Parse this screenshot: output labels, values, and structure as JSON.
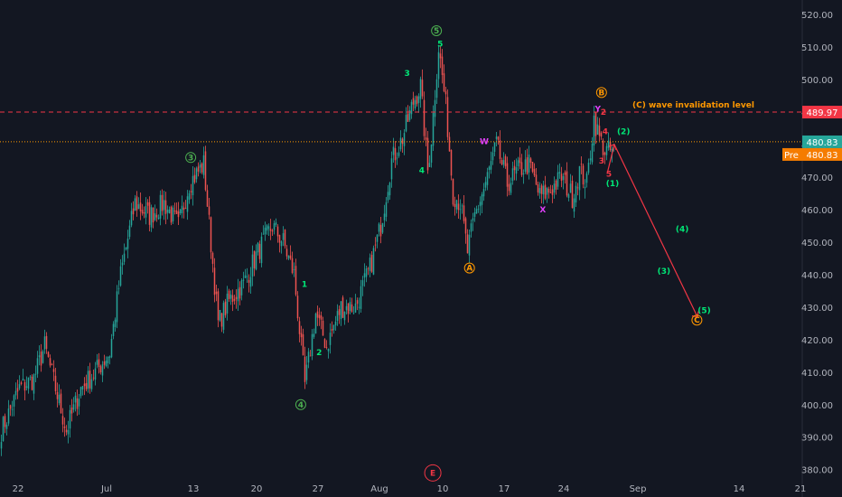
{
  "chart_data": {
    "type": "candlestick",
    "x_ticks": [
      "22",
      "Jul",
      "13",
      "20",
      "27",
      "Aug",
      "10",
      "17",
      "24",
      "Sep",
      "14",
      "21"
    ],
    "y_ticks": [
      "520.00",
      "510.00",
      "500.00",
      "490.00",
      "480.00",
      "470.00",
      "460.00",
      "450.00",
      "440.00",
      "430.00",
      "420.00",
      "410.00",
      "400.00",
      "390.00",
      "380.00"
    ],
    "ylim": [
      376,
      524
    ],
    "grid": false,
    "price_path": [
      {
        "i": 0,
        "v": 392
      },
      {
        "i": 10,
        "v": 405
      },
      {
        "i": 18,
        "v": 408
      },
      {
        "i": 24,
        "v": 418
      },
      {
        "i": 30,
        "v": 405
      },
      {
        "i": 36,
        "v": 392
      },
      {
        "i": 44,
        "v": 405
      },
      {
        "i": 52,
        "v": 410
      },
      {
        "i": 60,
        "v": 416
      },
      {
        "i": 66,
        "v": 440
      },
      {
        "i": 74,
        "v": 462
      },
      {
        "i": 82,
        "v": 458
      },
      {
        "i": 90,
        "v": 462
      },
      {
        "i": 98,
        "v": 455
      },
      {
        "i": 104,
        "v": 468
      },
      {
        "i": 112,
        "v": 474
      },
      {
        "i": 120,
        "v": 425
      },
      {
        "i": 126,
        "v": 432
      },
      {
        "i": 134,
        "v": 437
      },
      {
        "i": 142,
        "v": 447
      },
      {
        "i": 150,
        "v": 455
      },
      {
        "i": 156,
        "v": 450
      },
      {
        "i": 162,
        "v": 440
      },
      {
        "i": 168,
        "v": 406
      },
      {
        "i": 174,
        "v": 428
      },
      {
        "i": 180,
        "v": 418
      },
      {
        "i": 188,
        "v": 430
      },
      {
        "i": 196,
        "v": 430
      },
      {
        "i": 204,
        "v": 442
      },
      {
        "i": 210,
        "v": 455
      },
      {
        "i": 216,
        "v": 475
      },
      {
        "i": 222,
        "v": 482
      },
      {
        "i": 228,
        "v": 493
      },
      {
        "i": 232,
        "v": 498
      },
      {
        "i": 236,
        "v": 472
      },
      {
        "i": 238,
        "v": 482
      },
      {
        "i": 242,
        "v": 510
      },
      {
        "i": 246,
        "v": 492
      },
      {
        "i": 250,
        "v": 465
      },
      {
        "i": 254,
        "v": 462
      },
      {
        "i": 258,
        "v": 447
      },
      {
        "i": 262,
        "v": 458
      },
      {
        "i": 268,
        "v": 468
      },
      {
        "i": 274,
        "v": 480
      },
      {
        "i": 280,
        "v": 468
      },
      {
        "i": 286,
        "v": 472
      },
      {
        "i": 292,
        "v": 474
      },
      {
        "i": 298,
        "v": 464
      },
      {
        "i": 304,
        "v": 466
      },
      {
        "i": 310,
        "v": 470
      },
      {
        "i": 316,
        "v": 464
      },
      {
        "i": 320,
        "v": 472
      },
      {
        "i": 324,
        "v": 468
      },
      {
        "i": 328,
        "v": 488
      },
      {
        "i": 331,
        "v": 482
      },
      {
        "i": 334,
        "v": 478
      }
    ],
    "horizontal_lines": [
      {
        "value": 489.97,
        "label": "489.97",
        "color": "#f23645",
        "style": "dashed"
      },
      {
        "value": 480.83,
        "label": "480.83",
        "color": "#26a69a",
        "style": "dotted"
      }
    ],
    "pre_badge": {
      "tag": "Pre",
      "value": "480.83",
      "color": "#f57c00"
    },
    "invalidation_text": "(C) wave invalidation level",
    "projection": [
      {
        "i": 336,
        "v": 480
      },
      {
        "i": 366,
        "v": 428
      }
    ],
    "wave_labels": [
      {
        "text": "3",
        "i": 104,
        "v": 476,
        "color": "#4caf50",
        "circle": true
      },
      {
        "text": "4",
        "i": 164,
        "v": 400,
        "color": "#4caf50",
        "circle": true
      },
      {
        "text": "5",
        "i": 238,
        "v": 515,
        "color": "#4caf50",
        "circle": true
      },
      {
        "text": "E",
        "i": 236,
        "v": 379,
        "color": "#f23645",
        "circle": true
      },
      {
        "text": "A",
        "i": 256,
        "v": 442,
        "color": "#ff9800",
        "circle": true
      },
      {
        "text": "B",
        "i": 328,
        "v": 496,
        "color": "#ff9800",
        "circle": true
      },
      {
        "text": "C",
        "i": 380,
        "v": 426,
        "color": "#ff9800",
        "circle": true
      },
      {
        "text": "1",
        "i": 166,
        "v": 437,
        "color": "#00e676"
      },
      {
        "text": "2",
        "i": 174,
        "v": 416,
        "color": "#00e676"
      },
      {
        "text": "3",
        "i": 222,
        "v": 502,
        "color": "#00e676"
      },
      {
        "text": "4",
        "i": 230,
        "v": 472,
        "color": "#00e676"
      },
      {
        "text": "5",
        "i": 240,
        "v": 511,
        "color": "#00e676"
      },
      {
        "text": "W",
        "i": 264,
        "v": 481,
        "color": "#e040fb"
      },
      {
        "text": "X",
        "i": 296,
        "v": 460,
        "color": "#e040fb"
      },
      {
        "text": "Y",
        "i": 326,
        "v": 491,
        "color": "#e040fb"
      },
      {
        "text": "2",
        "i": 329,
        "v": 490,
        "color": "#f23645"
      },
      {
        "text": "4",
        "i": 330,
        "v": 484,
        "color": "#f23645"
      },
      {
        "text": "3",
        "i": 328,
        "v": 475,
        "color": "#f23645"
      },
      {
        "text": "5",
        "i": 332,
        "v": 471,
        "color": "#f23645"
      },
      {
        "text": "(1)",
        "i": 334,
        "v": 468,
        "color": "#00e676"
      },
      {
        "text": "(2)",
        "i": 340,
        "v": 484,
        "color": "#00e676"
      },
      {
        "text": "(3)",
        "i": 362,
        "v": 441,
        "color": "#00e676"
      },
      {
        "text": "(4)",
        "i": 372,
        "v": 454,
        "color": "#00e676"
      },
      {
        "text": "(5)",
        "i": 384,
        "v": 429,
        "color": "#00e676"
      }
    ],
    "colors": {
      "background": "#131722",
      "up": "#26a69a",
      "down": "#ef5350",
      "axis_text": "#b2b5be",
      "projection": "#f23645"
    }
  }
}
